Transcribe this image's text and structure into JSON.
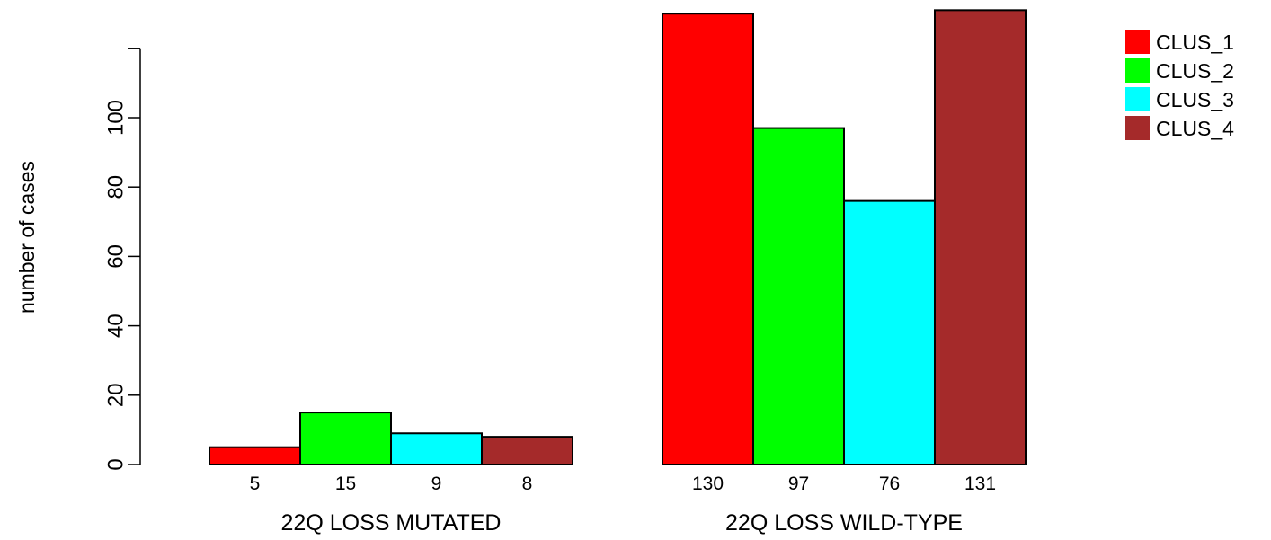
{
  "chart_data": {
    "type": "bar",
    "categories": [
      "22Q LOSS MUTATED",
      "22Q LOSS WILD-TYPE"
    ],
    "series": [
      {
        "name": "CLUS_1",
        "color": "#ff0000",
        "values": [
          5,
          130
        ]
      },
      {
        "name": "CLUS_2",
        "color": "#00ff00",
        "values": [
          15,
          97
        ]
      },
      {
        "name": "CLUS_3",
        "color": "#00ffff",
        "values": [
          9,
          76
        ]
      },
      {
        "name": "CLUS_4",
        "color": "#a52a2a",
        "values": [
          8,
          131
        ]
      }
    ],
    "bar_labels": [
      [
        "5",
        "15",
        "9",
        "8"
      ],
      [
        "130",
        "97",
        "76",
        "131"
      ]
    ],
    "ylabel": "number of cases",
    "yticks": [
      0,
      20,
      40,
      60,
      80,
      100
    ],
    "ylim": [
      0,
      131
    ],
    "legend_position": "top-right"
  }
}
